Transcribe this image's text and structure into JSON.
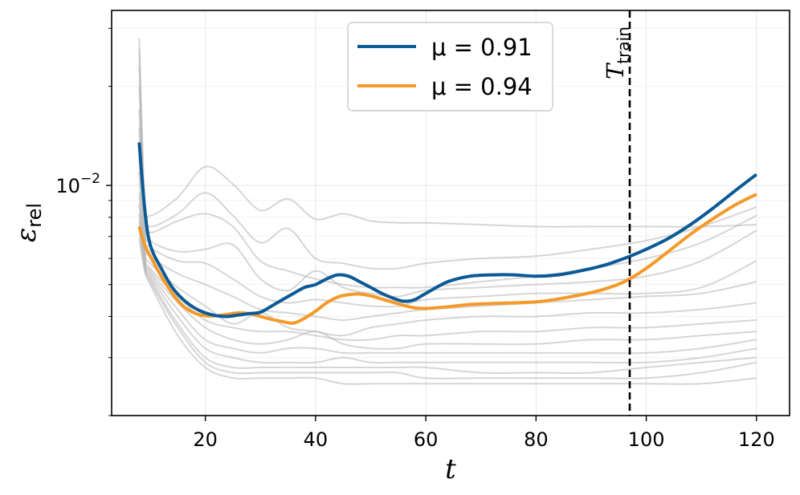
{
  "chart_data": {
    "type": "line",
    "title": "",
    "xlabel": "t",
    "ylabel": {
      "main": "ε",
      "sub": "rel"
    },
    "xlim": [
      3,
      126
    ],
    "ylim": [
      0.002,
      0.034
    ],
    "yscale": "log",
    "x_ticks": [
      20,
      40,
      60,
      80,
      100,
      120
    ],
    "y_ticks": [
      {
        "value": 0.01,
        "base": "10",
        "exp": "−2"
      }
    ],
    "grid": true,
    "legend": {
      "position": "top-center"
    },
    "vline": {
      "x": 97,
      "label_main": "T",
      "label_sub": "train",
      "style": "dashed",
      "color": "#000000"
    },
    "series": [
      {
        "name": "μ = 0.91",
        "color": "#0b5a96",
        "highlight": true,
        "x": [
          8,
          9,
          10,
          12,
          14,
          16,
          18,
          20,
          22,
          24,
          26,
          28,
          30,
          32,
          34,
          36,
          38,
          40,
          42,
          44,
          46,
          48,
          50,
          52,
          54,
          56,
          58,
          60,
          64,
          68,
          72,
          76,
          80,
          84,
          88,
          92,
          96,
          100,
          104,
          108,
          112,
          116,
          120
        ],
        "y": [
          0.0135,
          0.0085,
          0.0066,
          0.0056,
          0.0049,
          0.0045,
          0.00425,
          0.0041,
          0.00402,
          0.004,
          0.00404,
          0.00408,
          0.00412,
          0.0043,
          0.0045,
          0.0047,
          0.0049,
          0.005,
          0.0052,
          0.00535,
          0.0053,
          0.0051,
          0.0049,
          0.0047,
          0.00455,
          0.00445,
          0.0045,
          0.0047,
          0.0051,
          0.0053,
          0.00535,
          0.00535,
          0.0053,
          0.00535,
          0.0055,
          0.0057,
          0.006,
          0.0064,
          0.0069,
          0.0076,
          0.0085,
          0.0096,
          0.0108
        ]
      },
      {
        "name": "μ = 0.94",
        "color": "#f39a2a",
        "highlight": true,
        "x": [
          8,
          9,
          10,
          12,
          14,
          16,
          18,
          20,
          22,
          24,
          26,
          28,
          30,
          32,
          34,
          36,
          38,
          40,
          42,
          44,
          46,
          48,
          50,
          52,
          54,
          56,
          58,
          60,
          64,
          68,
          72,
          76,
          80,
          84,
          88,
          92,
          96,
          100,
          104,
          108,
          112,
          116,
          120
        ],
        "y": [
          0.0075,
          0.0066,
          0.0061,
          0.0053,
          0.0047,
          0.0043,
          0.0041,
          0.00402,
          0.00402,
          0.00406,
          0.0041,
          0.00408,
          0.004,
          0.00392,
          0.00386,
          0.00382,
          0.00395,
          0.00415,
          0.0044,
          0.00458,
          0.00466,
          0.00468,
          0.00462,
          0.00452,
          0.00442,
          0.00432,
          0.00425,
          0.00423,
          0.00428,
          0.00435,
          0.00438,
          0.0044,
          0.00443,
          0.00452,
          0.00465,
          0.00482,
          0.0051,
          0.0056,
          0.0063,
          0.0071,
          0.0079,
          0.0087,
          0.0094
        ]
      }
    ],
    "background_series": [
      {
        "x": [
          8,
          9,
          10,
          15,
          20,
          25,
          30,
          35,
          40,
          45,
          50,
          55,
          60,
          70,
          80,
          90,
          100,
          110,
          120
        ],
        "y": [
          0.028,
          0.009,
          0.0081,
          0.0092,
          0.0114,
          0.0101,
          0.0084,
          0.0091,
          0.0079,
          0.0082,
          0.0078,
          0.0077,
          0.0077,
          0.0076,
          0.0075,
          0.0075,
          0.0075,
          0.0075,
          0.0076
        ]
      },
      {
        "x": [
          8,
          9,
          10,
          15,
          20,
          25,
          30,
          35,
          40,
          45,
          50,
          55,
          60,
          70,
          80,
          90,
          100,
          110,
          120
        ],
        "y": [
          0.02,
          0.0085,
          0.0075,
          0.0082,
          0.0095,
          0.0081,
          0.0067,
          0.0074,
          0.006,
          0.0058,
          0.0056,
          0.0056,
          0.0058,
          0.006,
          0.0061,
          0.0064,
          0.0068,
          0.0075,
          0.0086
        ]
      },
      {
        "x": [
          8,
          9,
          10,
          15,
          20,
          25,
          30,
          35,
          40,
          45,
          50,
          55,
          60,
          70,
          80,
          90,
          100,
          110,
          120
        ],
        "y": [
          0.023,
          0.008,
          0.0072,
          0.0078,
          0.0082,
          0.0075,
          0.0059,
          0.0055,
          0.0052,
          0.005,
          0.0049,
          0.0049,
          0.0049,
          0.0051,
          0.0053,
          0.0056,
          0.006,
          0.0067,
          0.0081
        ]
      },
      {
        "x": [
          8,
          9,
          10,
          15,
          20,
          25,
          30,
          35,
          40,
          45,
          50,
          55,
          60,
          70,
          80,
          90,
          100,
          110,
          120
        ],
        "y": [
          0.026,
          0.0078,
          0.0068,
          0.0063,
          0.0064,
          0.0066,
          0.0052,
          0.0048,
          0.0055,
          0.0049,
          0.0047,
          0.0046,
          0.0048,
          0.0049,
          0.005,
          0.0051,
          0.0053,
          0.0059,
          0.0073
        ]
      },
      {
        "x": [
          8,
          9,
          10,
          15,
          20,
          25,
          30,
          35,
          40,
          45,
          50,
          55,
          60,
          70,
          80,
          90,
          100,
          110,
          120
        ],
        "y": [
          0.017,
          0.0072,
          0.0065,
          0.0059,
          0.0058,
          0.0052,
          0.0046,
          0.0044,
          0.0045,
          0.0044,
          0.0043,
          0.0043,
          0.0045,
          0.0046,
          0.0047,
          0.0047,
          0.0047,
          0.0049,
          0.0059
        ]
      },
      {
        "x": [
          8,
          9,
          10,
          15,
          20,
          25,
          30,
          35,
          40,
          45,
          50,
          55,
          60,
          70,
          80,
          90,
          100,
          110,
          120
        ],
        "y": [
          0.015,
          0.0068,
          0.0061,
          0.0054,
          0.005,
          0.0046,
          0.0042,
          0.0041,
          0.004,
          0.0039,
          0.004,
          0.0041,
          0.0042,
          0.0043,
          0.0044,
          0.0045,
          0.0046,
          0.0047,
          0.0051
        ]
      },
      {
        "x": [
          8,
          9,
          10,
          15,
          20,
          25,
          30,
          35,
          40,
          45,
          50,
          55,
          60,
          70,
          80,
          90,
          100,
          110,
          120
        ],
        "y": [
          0.012,
          0.0064,
          0.0058,
          0.0049,
          0.0043,
          0.0038,
          0.0041,
          0.0037,
          0.0036,
          0.0035,
          0.0037,
          0.0038,
          0.0039,
          0.004,
          0.004,
          0.0041,
          0.0041,
          0.0042,
          0.0044
        ]
      },
      {
        "x": [
          8,
          9,
          10,
          15,
          20,
          25,
          30,
          35,
          40,
          45,
          50,
          55,
          60,
          70,
          80,
          90,
          100,
          110,
          120
        ],
        "y": [
          0.011,
          0.0062,
          0.0056,
          0.0046,
          0.0039,
          0.0037,
          0.0036,
          0.0036,
          0.0035,
          0.0034,
          0.0034,
          0.0035,
          0.0035,
          0.0036,
          0.0036,
          0.0037,
          0.0037,
          0.0038,
          0.0039
        ]
      },
      {
        "x": [
          8,
          9,
          10,
          15,
          20,
          25,
          30,
          35,
          40,
          45,
          50,
          55,
          60,
          70,
          80,
          90,
          100,
          110,
          120
        ],
        "y": [
          0.0095,
          0.006,
          0.0055,
          0.0044,
          0.0037,
          0.0034,
          0.0033,
          0.0034,
          0.0036,
          0.0033,
          0.0032,
          0.0032,
          0.0033,
          0.0033,
          0.0033,
          0.0034,
          0.0034,
          0.0035,
          0.0036
        ]
      },
      {
        "x": [
          8,
          9,
          10,
          15,
          20,
          25,
          30,
          35,
          40,
          45,
          50,
          55,
          60,
          70,
          80,
          90,
          100,
          110,
          120
        ],
        "y": [
          0.0088,
          0.0059,
          0.0054,
          0.0042,
          0.0034,
          0.0032,
          0.0031,
          0.0032,
          0.0032,
          0.0031,
          0.0031,
          0.0031,
          0.0031,
          0.0031,
          0.0031,
          0.0031,
          0.0031,
          0.0032,
          0.0034
        ]
      },
      {
        "x": [
          8,
          9,
          10,
          15,
          20,
          25,
          30,
          35,
          40,
          45,
          50,
          55,
          60,
          70,
          80,
          90,
          100,
          110,
          120
        ],
        "y": [
          0.0082,
          0.0058,
          0.0053,
          0.004,
          0.0032,
          0.003,
          0.0029,
          0.0029,
          0.0029,
          0.003,
          0.0029,
          0.0029,
          0.0029,
          0.0029,
          0.0029,
          0.0029,
          0.0029,
          0.003,
          0.0032
        ]
      },
      {
        "x": [
          8,
          9,
          10,
          15,
          20,
          25,
          30,
          35,
          40,
          45,
          50,
          55,
          60,
          70,
          80,
          90,
          100,
          110,
          120
        ],
        "y": [
          0.0078,
          0.0057,
          0.0052,
          0.0038,
          0.003,
          0.0028,
          0.0028,
          0.0028,
          0.0028,
          0.0028,
          0.0028,
          0.0028,
          0.0028,
          0.0027,
          0.0027,
          0.0027,
          0.0028,
          0.0029,
          0.003
        ]
      },
      {
        "x": [
          8,
          9,
          10,
          15,
          20,
          25,
          30,
          35,
          40,
          45,
          50,
          55,
          60,
          70,
          80,
          90,
          100,
          110,
          120
        ],
        "y": [
          0.0073,
          0.0056,
          0.0051,
          0.0037,
          0.0029,
          0.0027,
          0.0027,
          0.0027,
          0.0027,
          0.0027,
          0.0027,
          0.0027,
          0.0026,
          0.0026,
          0.0026,
          0.0026,
          0.0026,
          0.0027,
          0.0029
        ]
      },
      {
        "x": [
          8,
          9,
          10,
          15,
          20,
          25,
          30,
          35,
          40,
          45,
          50,
          55,
          60,
          70,
          80,
          90,
          100,
          110,
          120
        ],
        "y": [
          0.0069,
          0.0055,
          0.005,
          0.0035,
          0.0028,
          0.0026,
          0.0026,
          0.0026,
          0.0026,
          0.0025,
          0.0025,
          0.0025,
          0.0025,
          0.0025,
          0.0025,
          0.0025,
          0.0025,
          0.0025,
          0.0026
        ]
      }
    ]
  }
}
